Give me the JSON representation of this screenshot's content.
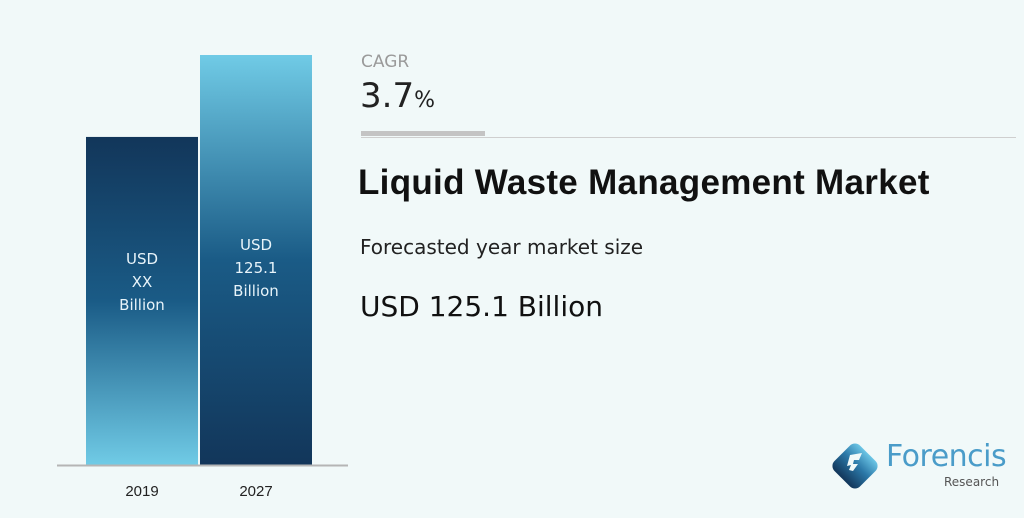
{
  "chart_data": {
    "type": "bar",
    "categories": [
      "2019",
      "2027"
    ],
    "values": [
      100.1,
      125.1
    ],
    "bar_labels": [
      [
        "USD",
        "XX",
        "Billion"
      ],
      [
        "USD",
        "125.1",
        "Billion"
      ]
    ],
    "ylim": [
      0,
      125.1
    ],
    "grid": false,
    "colors": {
      "dark": "#12365a",
      "light": "#6fcbe6",
      "axis": "#b5b5b5"
    }
  },
  "cagr": {
    "label": "CAGR",
    "value": "3.7",
    "unit": "%"
  },
  "title": "Liquid Waste Management Market",
  "subtitle": "Forecasted year market size",
  "market_value": "USD 125.1 Billion",
  "logo": {
    "name": "Forencis",
    "sub": "Research"
  }
}
